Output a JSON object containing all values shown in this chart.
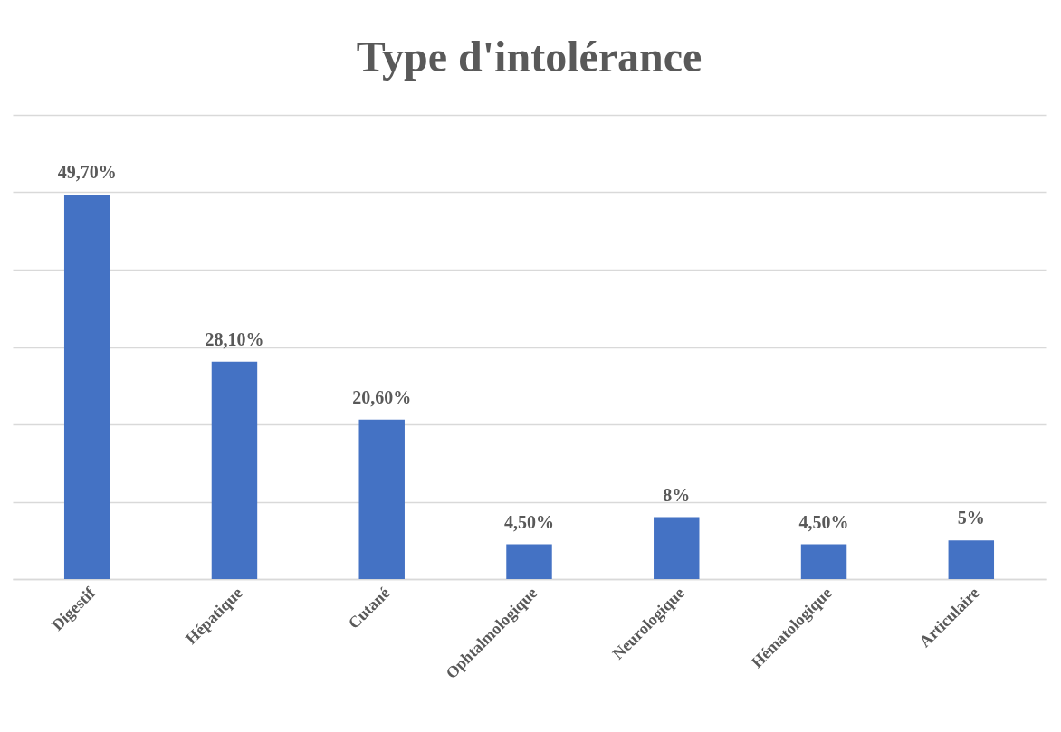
{
  "chart_data": {
    "type": "bar",
    "title": "Type d'intolérance",
    "categories": [
      "Digestif",
      "Hépatique",
      "Cutané",
      "Ophtalmologique",
      "Neurologique",
      "Hématologique",
      "Articulaire"
    ],
    "values": [
      49.7,
      28.1,
      20.6,
      4.5,
      8,
      4.5,
      5
    ],
    "value_labels": [
      "49,70%",
      "28,10%",
      "20,60%",
      "4,50%",
      "8%",
      "4,50%",
      "5%"
    ],
    "color": "#4472c4",
    "ylim": [
      0,
      60
    ],
    "yticks": [
      {
        "value": 0,
        "label": null
      },
      {
        "value": 10,
        "label": null
      },
      {
        "value": 20,
        "label": null
      },
      {
        "value": 30,
        "label": null
      },
      {
        "value": 40,
        "label": null
      },
      {
        "value": 50,
        "label": null
      },
      {
        "value": 60,
        "label": null
      }
    ],
    "grid": true,
    "tick_labels": "x"
  }
}
